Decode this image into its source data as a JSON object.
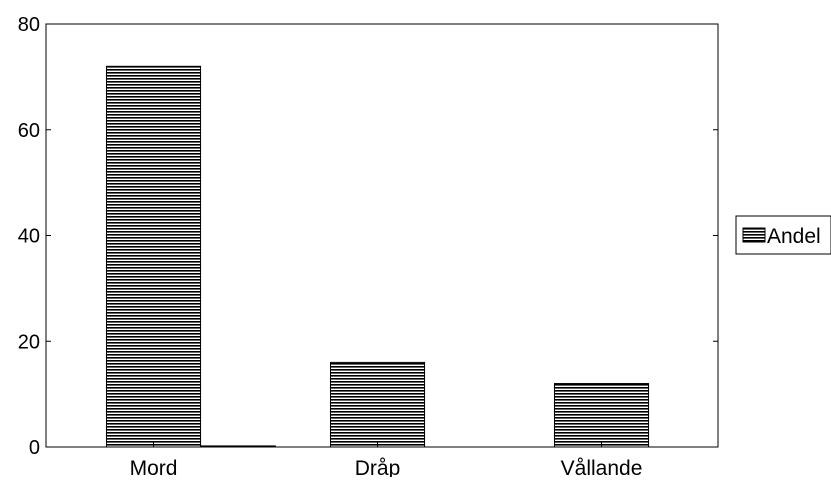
{
  "chart_data": {
    "type": "bar",
    "categories": [
      "Mord",
      "Dråp",
      "Vållande"
    ],
    "series": [
      {
        "name": "Andel",
        "values": [
          72,
          16,
          12
        ]
      }
    ],
    "extra_bar": {
      "category_index": 0,
      "value": 0.3
    },
    "ylim": [
      0,
      80
    ],
    "yticks": [
      0,
      20,
      40,
      60,
      80
    ],
    "title": "",
    "xlabel": "",
    "ylabel": "",
    "grid": false,
    "legend_position": "right",
    "bar_fill": "horizontal-hatch",
    "colors": {
      "stroke": "#000000",
      "background": "#ffffff"
    }
  }
}
